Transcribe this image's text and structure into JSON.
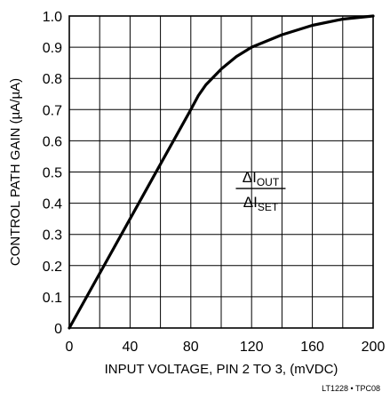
{
  "chart_data": {
    "type": "line",
    "title": "",
    "xlabel": "INPUT VOLTAGE, PIN 2 TO 3, (mVDC)",
    "ylabel": "CONTROL PATH GAIN (µA/µA)",
    "xlim": [
      0,
      200
    ],
    "ylim": [
      0,
      1.0
    ],
    "xticks": [
      0,
      40,
      80,
      120,
      160,
      200
    ],
    "xtick_labels": [
      "0",
      "40",
      "80",
      "120",
      "160",
      "200"
    ],
    "yticks": [
      0,
      0.1,
      0.2,
      0.3,
      0.4,
      0.5,
      0.6,
      0.7,
      0.8,
      0.9,
      1.0
    ],
    "ytick_labels": [
      "0",
      "0.1",
      "0.2",
      "0.3",
      "0.4",
      "0.5",
      "0.6",
      "0.7",
      "0.8",
      "0.9",
      "1.0"
    ],
    "grid": true,
    "x_gridlines_every": 20,
    "series": [
      {
        "x": [
          0,
          20,
          40,
          60,
          80,
          85,
          90,
          100,
          110,
          120,
          140,
          160,
          180,
          200
        ],
        "y": [
          0,
          0.175,
          0.35,
          0.525,
          0.7,
          0.745,
          0.78,
          0.83,
          0.87,
          0.9,
          0.94,
          0.97,
          0.99,
          1.0
        ]
      }
    ],
    "annotation": {
      "numerator": "ΔI",
      "numerator_sub": "OUT",
      "denominator": "ΔI",
      "denominator_sub": "SET",
      "x": 126,
      "y": 0.45
    },
    "figure_id": "LT1228 • TPC08"
  }
}
